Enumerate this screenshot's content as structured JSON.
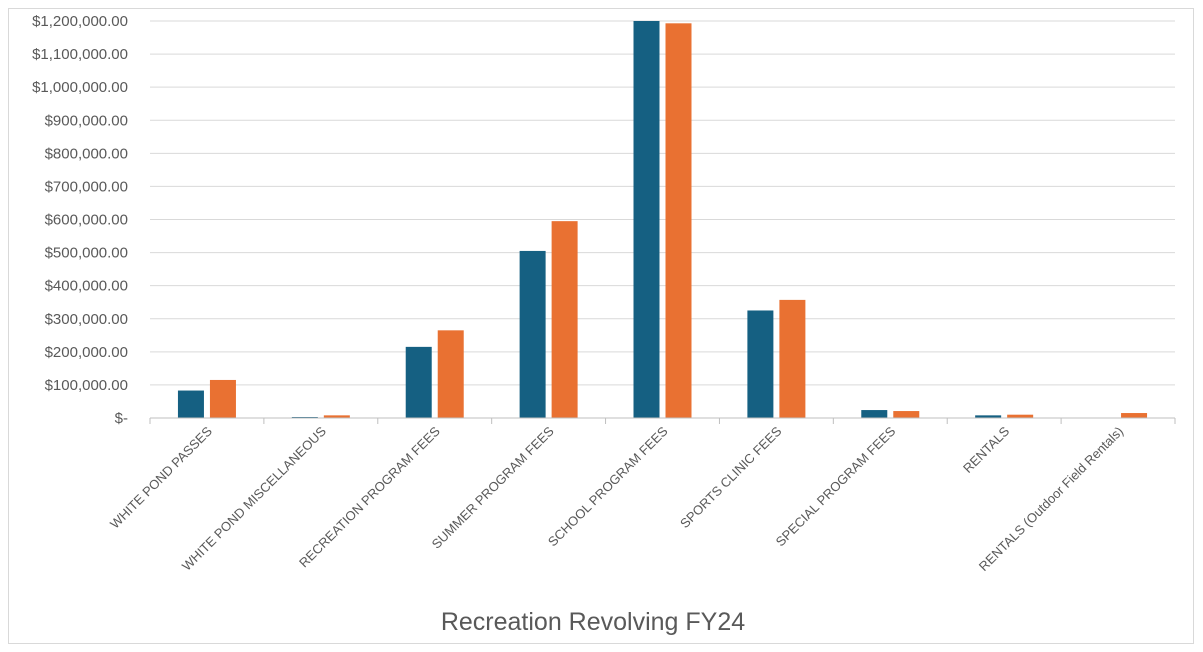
{
  "chart_data": {
    "type": "bar",
    "title": "Recreation Revolving FY24",
    "xlabel": "",
    "ylabel": "",
    "categories": [
      "WHITE POND PASSES",
      "WHITE POND MISCELLANEOUS",
      "RECREATION PROGRAM FEES",
      "SUMMER PROGRAM FEES",
      "SCHOOL PROGRAM FEES",
      "SPORTS CLINIC FEES",
      "SPECIAL PROGRAM FEES",
      "RENTALS",
      "RENTALS (Outdoor Field Rentals)"
    ],
    "series": [
      {
        "color": "#156082",
        "values": [
          83000,
          3000,
          215000,
          505000,
          1200000,
          325000,
          24000,
          8000,
          0
        ]
      },
      {
        "color": "#e97132",
        "values": [
          115000,
          8000,
          265000,
          595000,
          1193000,
          357000,
          21000,
          10000,
          15000
        ]
      }
    ],
    "ylim": [
      0,
      1200000
    ],
    "yticks": [
      0,
      100000,
      200000,
      300000,
      400000,
      500000,
      600000,
      700000,
      800000,
      900000,
      1000000,
      1100000,
      1200000
    ],
    "ytick_labels": [
      "$-",
      "$100,000.00",
      "$200,000.00",
      "$300,000.00",
      "$400,000.00",
      "$500,000.00",
      "$600,000.00",
      "$700,000.00",
      "$800,000.00",
      "$900,000.00",
      "$1,000,000.00",
      "$1,100,000.00",
      "$1,200,000.00"
    ],
    "grid": true,
    "legend": "none"
  }
}
